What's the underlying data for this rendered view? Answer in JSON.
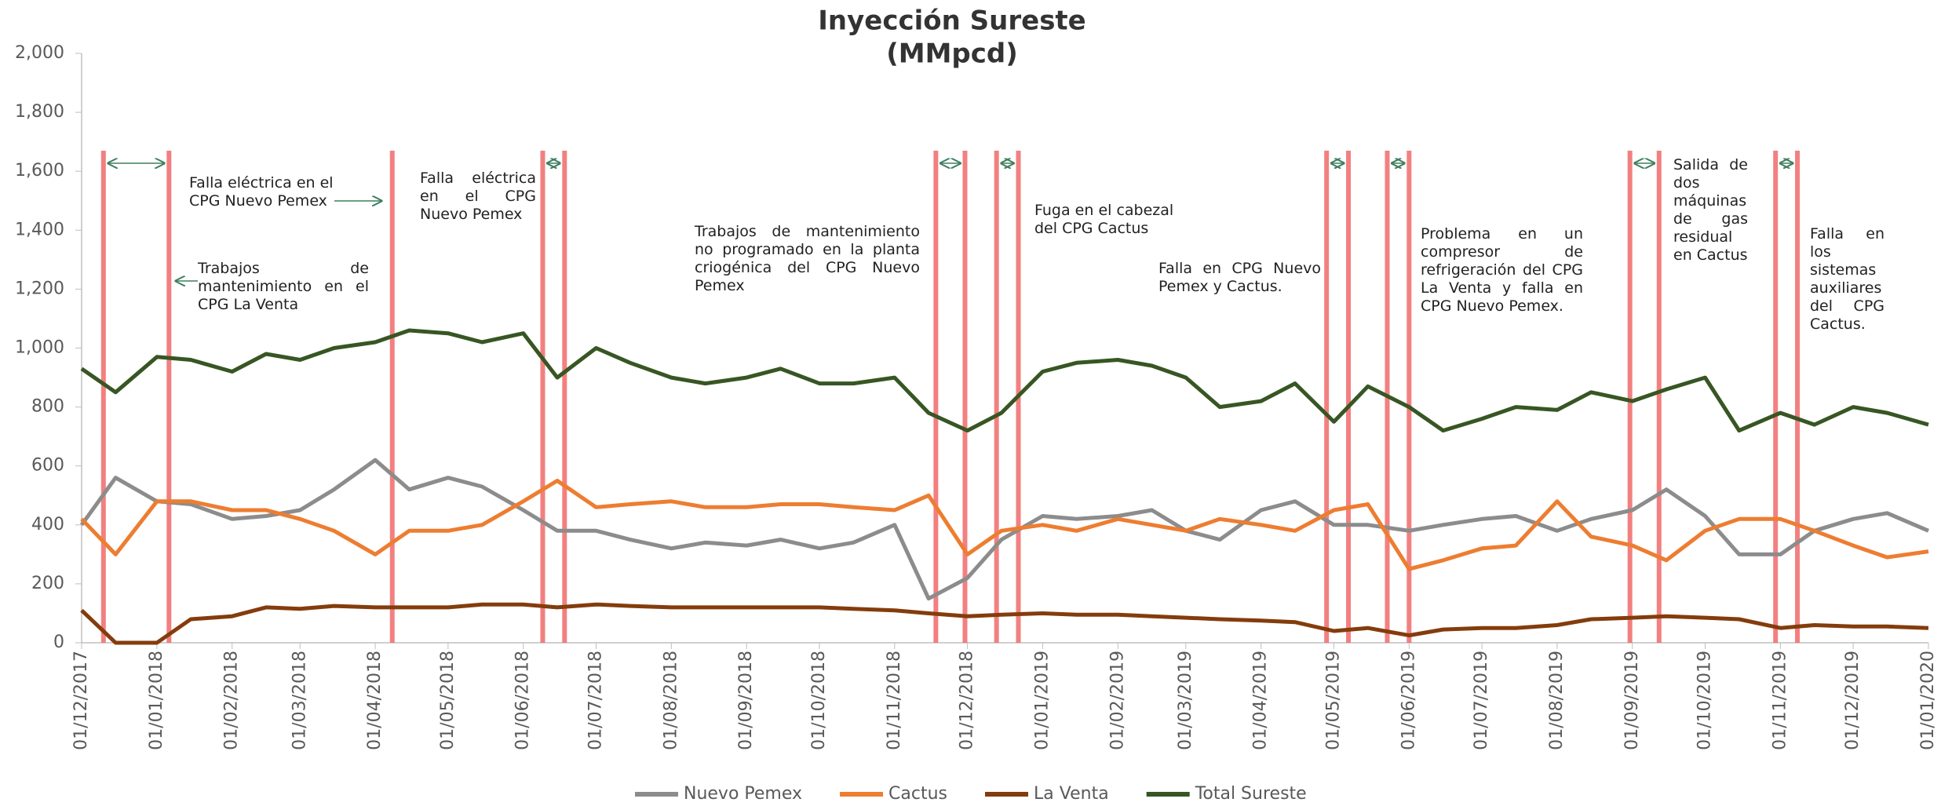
{
  "chart_data": {
    "type": "line",
    "title": "Inyección Sureste",
    "subtitle": "(MMpcd)",
    "x": [
      "01/12/2017",
      "15/12/2017",
      "01/01/2018",
      "15/01/2018",
      "01/02/2018",
      "15/02/2018",
      "01/03/2018",
      "15/03/2018",
      "01/04/2018",
      "15/04/2018",
      "01/05/2018",
      "15/05/2018",
      "01/06/2018",
      "15/06/2018",
      "01/07/2018",
      "15/07/2018",
      "01/08/2018",
      "15/08/2018",
      "01/09/2018",
      "15/09/2018",
      "01/10/2018",
      "15/10/2018",
      "01/11/2018",
      "15/11/2018",
      "01/12/2018",
      "15/12/2018",
      "01/01/2019",
      "15/01/2019",
      "01/02/2019",
      "15/02/2019",
      "01/03/2019",
      "15/03/2019",
      "01/04/2019",
      "15/04/2019",
      "01/05/2019",
      "15/05/2019",
      "01/06/2019",
      "15/06/2019",
      "01/07/2019",
      "15/07/2019",
      "01/08/2019",
      "15/08/2019",
      "01/09/2019",
      "15/09/2019",
      "01/10/2019",
      "15/10/2019",
      "01/11/2019",
      "15/11/2019",
      "01/12/2019",
      "15/12/2019",
      "01/01/2020"
    ],
    "series": [
      {
        "name": "Nuevo Pemex",
        "color": "#8c8c8c",
        "values": [
          400,
          560,
          480,
          470,
          420,
          430,
          450,
          520,
          620,
          520,
          560,
          530,
          450,
          380,
          380,
          350,
          320,
          340,
          330,
          350,
          320,
          340,
          400,
          150,
          220,
          350,
          430,
          420,
          430,
          450,
          380,
          350,
          450,
          480,
          400,
          400,
          380,
          400,
          420,
          430,
          380,
          420,
          450,
          520,
          430,
          300,
          300,
          380,
          420,
          440,
          380
        ]
      },
      {
        "name": "Cactus",
        "color": "#ed7d31",
        "values": [
          420,
          300,
          480,
          480,
          450,
          450,
          420,
          380,
          300,
          380,
          380,
          400,
          480,
          550,
          460,
          470,
          480,
          460,
          460,
          470,
          470,
          460,
          450,
          500,
          300,
          380,
          400,
          380,
          420,
          400,
          380,
          420,
          400,
          380,
          450,
          470,
          250,
          280,
          320,
          330,
          480,
          360,
          330,
          280,
          380,
          420,
          420,
          380,
          330,
          290,
          310
        ]
      },
      {
        "name": "La Venta",
        "color": "#843c0c",
        "values": [
          110,
          0,
          0,
          80,
          90,
          120,
          115,
          125,
          120,
          120,
          120,
          130,
          130,
          120,
          130,
          125,
          120,
          120,
          120,
          120,
          120,
          115,
          110,
          100,
          90,
          95,
          100,
          95,
          95,
          90,
          85,
          80,
          75,
          70,
          40,
          50,
          25,
          45,
          50,
          50,
          60,
          80,
          85,
          90,
          85,
          80,
          50,
          60,
          55,
          55,
          50
        ]
      },
      {
        "name": "Total Sureste",
        "color": "#375623",
        "values": [
          930,
          850,
          970,
          960,
          920,
          980,
          960,
          1000,
          1020,
          1060,
          1050,
          1020,
          1050,
          900,
          1000,
          950,
          900,
          880,
          900,
          930,
          880,
          880,
          900,
          780,
          720,
          780,
          920,
          950,
          960,
          940,
          900,
          800,
          820,
          880,
          750,
          870,
          800,
          720,
          760,
          800,
          790,
          850,
          820,
          860,
          900,
          720,
          780,
          740,
          800,
          780,
          740
        ]
      }
    ],
    "xlim": [
      "01/12/2017",
      "01/01/2020"
    ],
    "xticks": [
      "01/12/2017",
      "01/01/2018",
      "01/02/2018",
      "01/03/2018",
      "01/04/2018",
      "01/05/2018",
      "01/06/2018",
      "01/07/2018",
      "01/08/2018",
      "01/09/2018",
      "01/10/2018",
      "01/11/2018",
      "01/12/2018",
      "01/01/2019",
      "01/02/2019",
      "01/03/2019",
      "01/04/2019",
      "01/05/2019",
      "01/06/2019",
      "01/07/2019",
      "01/08/2019",
      "01/09/2019",
      "01/10/2019",
      "01/11/2019",
      "01/12/2019",
      "01/01/2020"
    ],
    "ylim": [
      0,
      2000
    ],
    "yticks": [
      0,
      200,
      400,
      600,
      800,
      {
        "value": 1000,
        "label": "1,000"
      },
      {
        "value": 1200,
        "label": "1,200"
      },
      {
        "value": 1400,
        "label": "1,400"
      },
      {
        "value": 1600,
        "label": "1,600"
      },
      {
        "value": 1800,
        "label": "1,800"
      },
      {
        "value": 2000,
        "label": "2,000"
      }
    ],
    "event_lines": {
      "color": "#f06a6a",
      "x": [
        "10/12/2017",
        "06/01/2018",
        "08/04/2018",
        "09/06/2018",
        "18/06/2018",
        "18/11/2018",
        "30/11/2018",
        "13/12/2018",
        "22/12/2018",
        "28/04/2019",
        "07/05/2019",
        "23/05/2019",
        "01/06/2019",
        "31/08/2019",
        "12/09/2019",
        "30/10/2019",
        "08/11/2019"
      ]
    },
    "annotations": [
      "Falla eléctrica en el CPG Nuevo Pemex",
      "Trabajos de mantenimiento en el CPG La Venta",
      "Falla eléctrica en el CPG Nuevo Pemex",
      "Trabajos de mantenimiento no programado en la planta criogénica del CPG Nuevo Pemex",
      "Fuga en el cabezal del CPG Cactus",
      "Falla en CPG Nuevo Pemex y Cactus.",
      "Problema en un compresor de refrigeración del CPG La Venta y falla en CPG Nuevo Pemex.",
      "Salida de dos máquinas de gas residual en Cactus",
      "Falla en los sistemas auxiliares del CPG Cactus."
    ],
    "legend": "bottom"
  }
}
